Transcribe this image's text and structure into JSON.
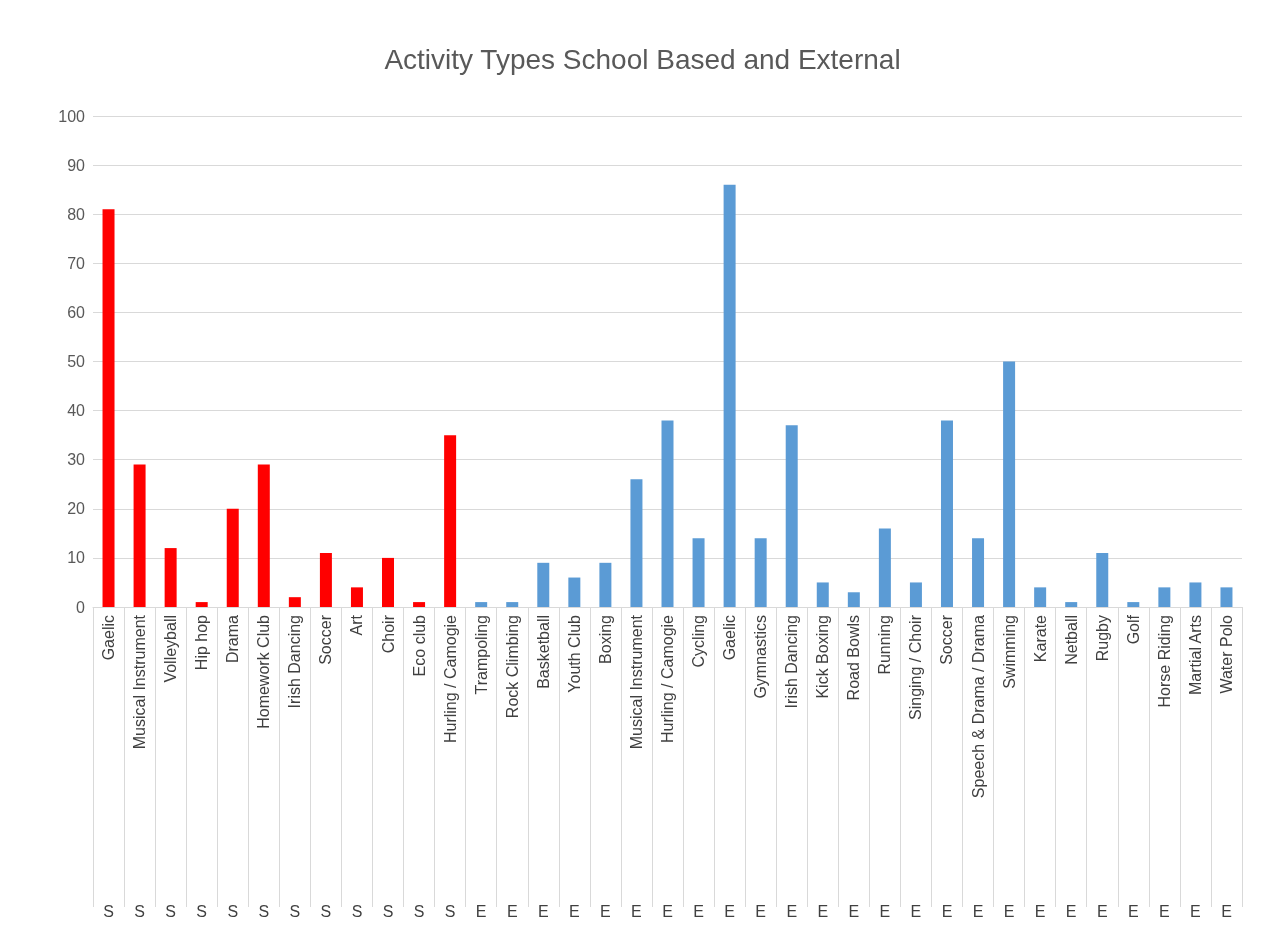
{
  "chart_data": {
    "type": "bar",
    "title": "Activity Types School Based and External",
    "categories": [
      "Gaelic",
      "Musical Instrument",
      "Volleyball",
      "Hip hop",
      "Drama",
      "Homework Club",
      "Irish Dancing",
      "Soccer",
      "Art",
      "Choir",
      "Eco club",
      "Hurling / Camogie",
      "Trampoling",
      "Rock Climbing",
      "Basketball",
      "Youth Club",
      "Boxing",
      "Musical Instrument",
      "Hurling / Camogie",
      "Cycling",
      "Gaelic",
      "Gymnastics",
      "Irish Dancing",
      "Kick Boxing",
      "Road Bowls",
      "Running",
      "Singing / Choir",
      "Soccer",
      "Speech & Drama / Drama",
      "Swimming",
      "Karate",
      "Netball",
      "Rugby",
      "Golf",
      "Horse Riding",
      "Martial Arts",
      "Water Polo"
    ],
    "series": [
      {
        "name": "S",
        "color": "#ff0000",
        "values": [
          81,
          29,
          12,
          1,
          20,
          29,
          2,
          11,
          4,
          10,
          1,
          35,
          null,
          null,
          null,
          null,
          null,
          null,
          null,
          null,
          null,
          null,
          null,
          null,
          null,
          null,
          null,
          null,
          null,
          null,
          null,
          null,
          null,
          null,
          null,
          null,
          null
        ]
      },
      {
        "name": "E",
        "color": "#5b9bd5",
        "values": [
          null,
          null,
          null,
          null,
          null,
          null,
          null,
          null,
          null,
          null,
          null,
          null,
          1,
          1,
          9,
          6,
          9,
          26,
          38,
          14,
          86,
          14,
          37,
          5,
          3,
          16,
          5,
          38,
          14,
          50,
          4,
          1,
          11,
          1,
          4,
          5,
          4
        ]
      }
    ],
    "ylim": [
      0,
      100
    ],
    "yticks": [
      0,
      10,
      20,
      30,
      40,
      50,
      60,
      70,
      80,
      90,
      100
    ],
    "grid": "y"
  }
}
